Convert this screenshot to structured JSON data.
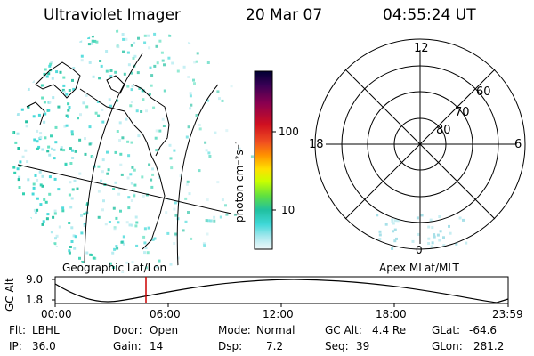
{
  "header": {
    "title": "Ultraviolet Imager",
    "date": "20 Mar 07",
    "time": "04:55:24 UT"
  },
  "colorbar": {
    "unit_label": "photon cm⁻²s⁻¹",
    "ticks": [
      "100",
      "10"
    ],
    "colors": [
      "#000033",
      "#3a0055",
      "#7a0060",
      "#b00020",
      "#e03030",
      "#ff8000",
      "#ffd000",
      "#c8ff00",
      "#60e040",
      "#20c0a0",
      "#40d8d8",
      "#a8e8ee",
      "#e8f4f8"
    ]
  },
  "polar_plot": {
    "mlt_labels": {
      "top": "12",
      "left": "18",
      "right": "6",
      "bottom": "0"
    },
    "lat_labels": [
      "60",
      "70",
      "80"
    ]
  },
  "map_label": "Geographic Lat/Lon",
  "polar_label": "Apex MLat/MLT",
  "altitude_plot": {
    "axis_label": "GC Alt",
    "y_ticks": [
      "9.0",
      "1.8"
    ],
    "x_ticks": [
      "00:00",
      "06:00",
      "12:00",
      "18:00",
      "23:59"
    ],
    "current_time_marker_color": "#cc0000"
  },
  "footer": {
    "row1": [
      {
        "label": "Flt:",
        "value": "LBHL"
      },
      {
        "label": "Door:",
        "value": "Open"
      },
      {
        "label": "Mode:",
        "value": "Normal"
      },
      {
        "label": "GC Alt:",
        "value": "4.4 Re"
      },
      {
        "label": "GLat:",
        "value": "-64.6"
      }
    ],
    "row2": [
      {
        "label": "IP:",
        "value": "36.0"
      },
      {
        "label": "Gain:",
        "value": "14"
      },
      {
        "label": "Dsp:",
        "value": "7.2"
      },
      {
        "label": "Seq:",
        "value": "39"
      },
      {
        "label": "GLon:",
        "value": "281.2"
      }
    ]
  }
}
